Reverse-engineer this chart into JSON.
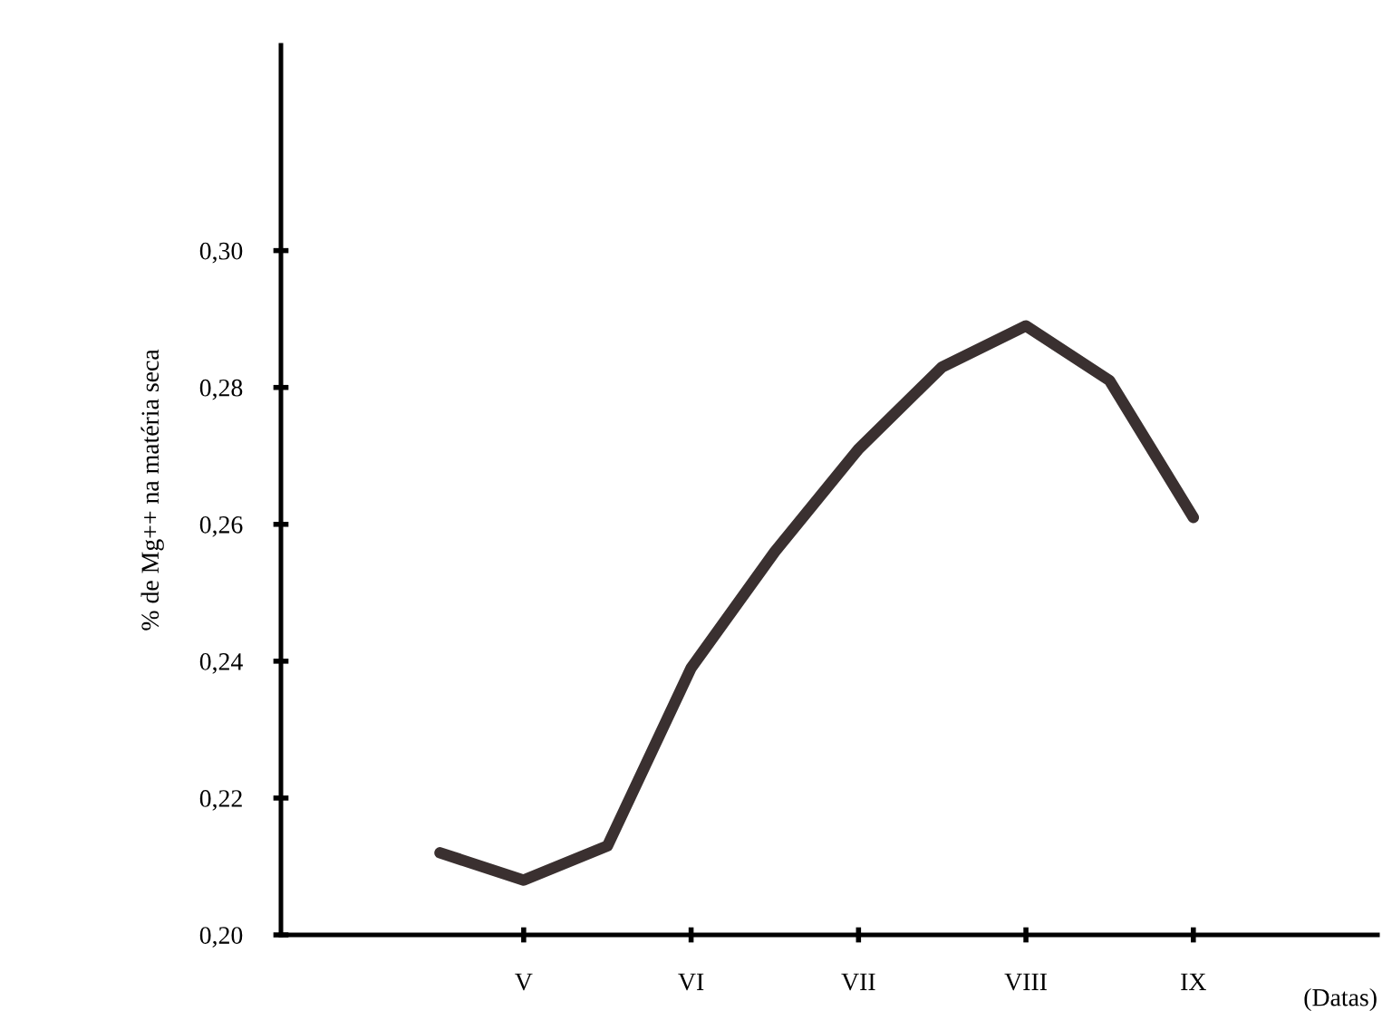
{
  "chart_data": {
    "type": "line",
    "xlabel": "(Datas)",
    "ylabel": "% de Mg++ na matéria seca",
    "categories": [
      null,
      "V",
      null,
      "VI",
      null,
      "VII",
      null,
      "VIII",
      null,
      "IX"
    ],
    "series": [
      {
        "color": "#3a3030",
        "values": [
          0.212,
          0.208,
          0.213,
          0.239,
          0.256,
          0.271,
          0.283,
          0.289,
          0.281,
          0.261
        ]
      }
    ],
    "ylim": [
      0.2,
      0.33
    ],
    "yticks": [
      {
        "value": 0.2,
        "label": "0,20"
      },
      {
        "value": 0.22,
        "label": "0,22"
      },
      {
        "value": 0.24,
        "label": "0,24"
      },
      {
        "value": 0.26,
        "label": "0,26"
      },
      {
        "value": 0.28,
        "label": "0,28"
      },
      {
        "value": 0.3,
        "label": "0,30"
      }
    ],
    "grid": false,
    "legend": false,
    "marker": "none",
    "line_style": "solid"
  }
}
